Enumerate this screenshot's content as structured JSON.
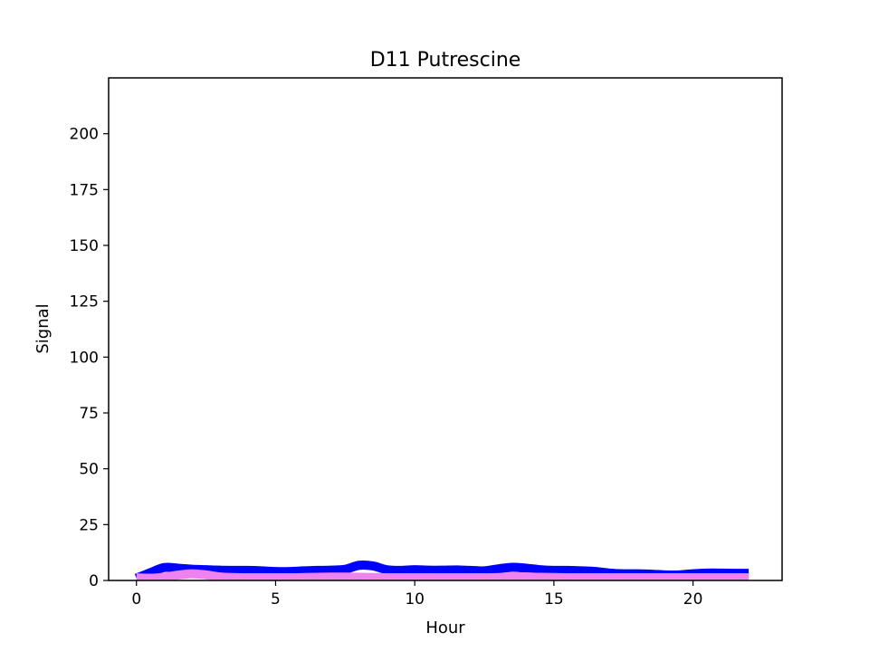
{
  "chart_data": {
    "type": "line",
    "title": "D11 Putrescine",
    "xlabel": "Hour",
    "ylabel": "Signal",
    "xlim": [
      -1.0,
      23.2
    ],
    "ylim": [
      0,
      225
    ],
    "xticks": [
      0,
      5,
      10,
      15,
      20
    ],
    "yticks": [
      0,
      25,
      50,
      75,
      100,
      125,
      150,
      175,
      200
    ],
    "grid": false,
    "legend": "none",
    "series": [
      {
        "color": "#0000ff",
        "x": [
          0,
          0.5,
          1,
          1.5,
          2,
          2.5,
          3,
          3.5,
          4,
          4.5,
          5,
          5.5,
          6,
          6.5,
          7,
          7.5,
          8,
          8.5,
          9,
          9.5,
          10,
          10.5,
          11,
          11.5,
          12,
          12.5,
          13,
          13.5,
          14,
          14.5,
          15,
          15.5,
          16,
          16.5,
          17,
          17.5,
          18,
          18.5,
          19,
          19.5,
          20,
          20.5,
          21,
          21.5,
          22
        ],
        "y": [
          1.0,
          3.5,
          5.8,
          5.5,
          5.0,
          4.8,
          4.6,
          4.5,
          4.5,
          4.3,
          4.0,
          4.0,
          4.3,
          4.5,
          4.6,
          5.0,
          6.8,
          6.5,
          4.8,
          4.5,
          4.8,
          4.6,
          4.6,
          4.7,
          4.5,
          4.3,
          5.2,
          5.9,
          5.5,
          4.8,
          4.5,
          4.5,
          4.3,
          4.0,
          3.3,
          3.0,
          3.0,
          2.8,
          2.5,
          2.5,
          3.0,
          3.3,
          3.3,
          3.2,
          3.2
        ]
      },
      {
        "color": "#ee82ee",
        "x": [
          0,
          0.5,
          1,
          1.5,
          2,
          2.5,
          3,
          3.5,
          4,
          4.5,
          5,
          5.5,
          6,
          6.5,
          7,
          7.5,
          8,
          8.5,
          9,
          9.5,
          10,
          10.5,
          11,
          11.5,
          12,
          12.5,
          13,
          13.5,
          14,
          14.5,
          15,
          15.5,
          16,
          16.5,
          17,
          17.5,
          18,
          18.5,
          19,
          19.5,
          20,
          20.5,
          21,
          21.5,
          22
        ],
        "y": [
          1.2,
          1.0,
          1.5,
          2.4,
          3.0,
          2.5,
          1.6,
          1.3,
          1.2,
          1.2,
          1.2,
          1.2,
          1.3,
          1.4,
          1.5,
          1.5,
          1.4,
          1.3,
          1.2,
          1.2,
          1.2,
          1.2,
          1.2,
          1.2,
          1.2,
          1.2,
          1.3,
          1.6,
          1.6,
          1.4,
          1.3,
          1.2,
          1.2,
          1.2,
          1.2,
          1.2,
          1.2,
          1.2,
          1.2,
          1.2,
          1.2,
          1.2,
          1.2,
          1.2,
          1.2
        ]
      }
    ]
  }
}
